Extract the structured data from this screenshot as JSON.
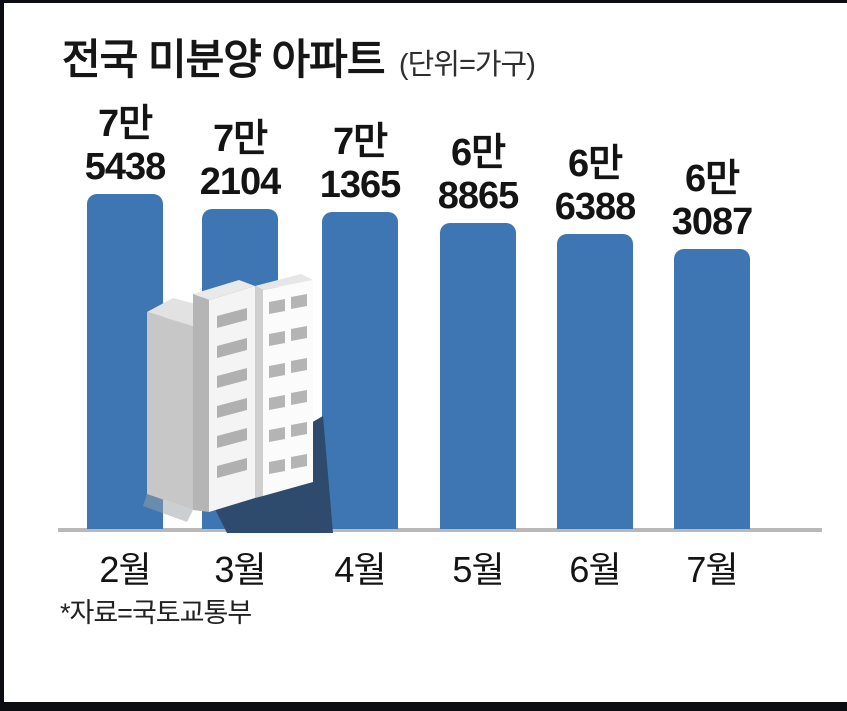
{
  "title": {
    "text": "전국 미분양 아파트",
    "unit": "(단위=가구)"
  },
  "source": "*자료=국토교통부",
  "chart_data": {
    "type": "bar",
    "title": "전국 미분양 아파트",
    "unit_label": "(단위=가구)",
    "categories": [
      "2월",
      "3월",
      "4월",
      "5월",
      "6월",
      "7월"
    ],
    "values": [
      75438,
      72104,
      71365,
      68865,
      66388,
      63087
    ],
    "value_labels": [
      [
        "7만",
        "5438"
      ],
      [
        "7만",
        "2104"
      ],
      [
        "7만",
        "1365"
      ],
      [
        "6만",
        "8865"
      ],
      [
        "6만",
        "6388"
      ],
      [
        "6만",
        "3087"
      ]
    ],
    "source": "*자료=국토교통부",
    "bar_color": "#3d76b2",
    "axis_color": "#b8b8b8",
    "text_color": "#141414",
    "background": "#ffffff",
    "ylim": [
      0,
      80000
    ],
    "grid": false,
    "legend": false
  },
  "decoration": {
    "illustration": "apartment-buildings"
  }
}
